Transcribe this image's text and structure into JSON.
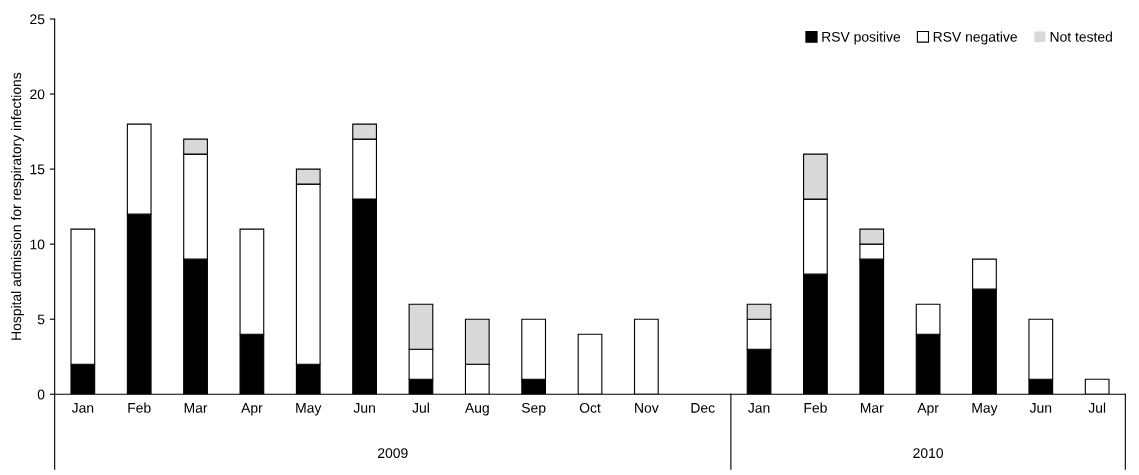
{
  "chart_data": {
    "type": "bar",
    "stacked": true,
    "ylabel": "Hospital admission for respiratory infections",
    "categories": [
      "Jan",
      "Feb",
      "Mar",
      "Apr",
      "May",
      "Jun",
      "Jul",
      "Aug",
      "Sep",
      "Oct",
      "Nov",
      "Dec",
      "Jan",
      "Feb",
      "Mar",
      "Apr",
      "May",
      "Jun",
      "Jul"
    ],
    "series": [
      {
        "name": "RSV positive",
        "color": "#000000",
        "values": [
          2,
          12,
          9,
          4,
          2,
          13,
          1,
          0,
          1,
          0,
          0,
          0,
          3,
          8,
          9,
          4,
          7,
          1,
          0
        ]
      },
      {
        "name": "RSV negative",
        "color": "#ffffff",
        "values": [
          9,
          6,
          7,
          7,
          12,
          4,
          2,
          2,
          4,
          4,
          5,
          0,
          2,
          5,
          1,
          2,
          2,
          4,
          1
        ]
      },
      {
        "name": "Not tested",
        "color": "#d9d9d9",
        "values": [
          0,
          0,
          1,
          0,
          1,
          1,
          3,
          3,
          0,
          0,
          0,
          0,
          1,
          3,
          1,
          0,
          0,
          0,
          0
        ]
      }
    ],
    "ylim": [
      0,
      25
    ],
    "yticks": [
      0,
      5,
      10,
      15,
      20,
      25
    ],
    "annotations": [
      "2009",
      "2010"
    ],
    "legend": "top right",
    "grid": false
  }
}
